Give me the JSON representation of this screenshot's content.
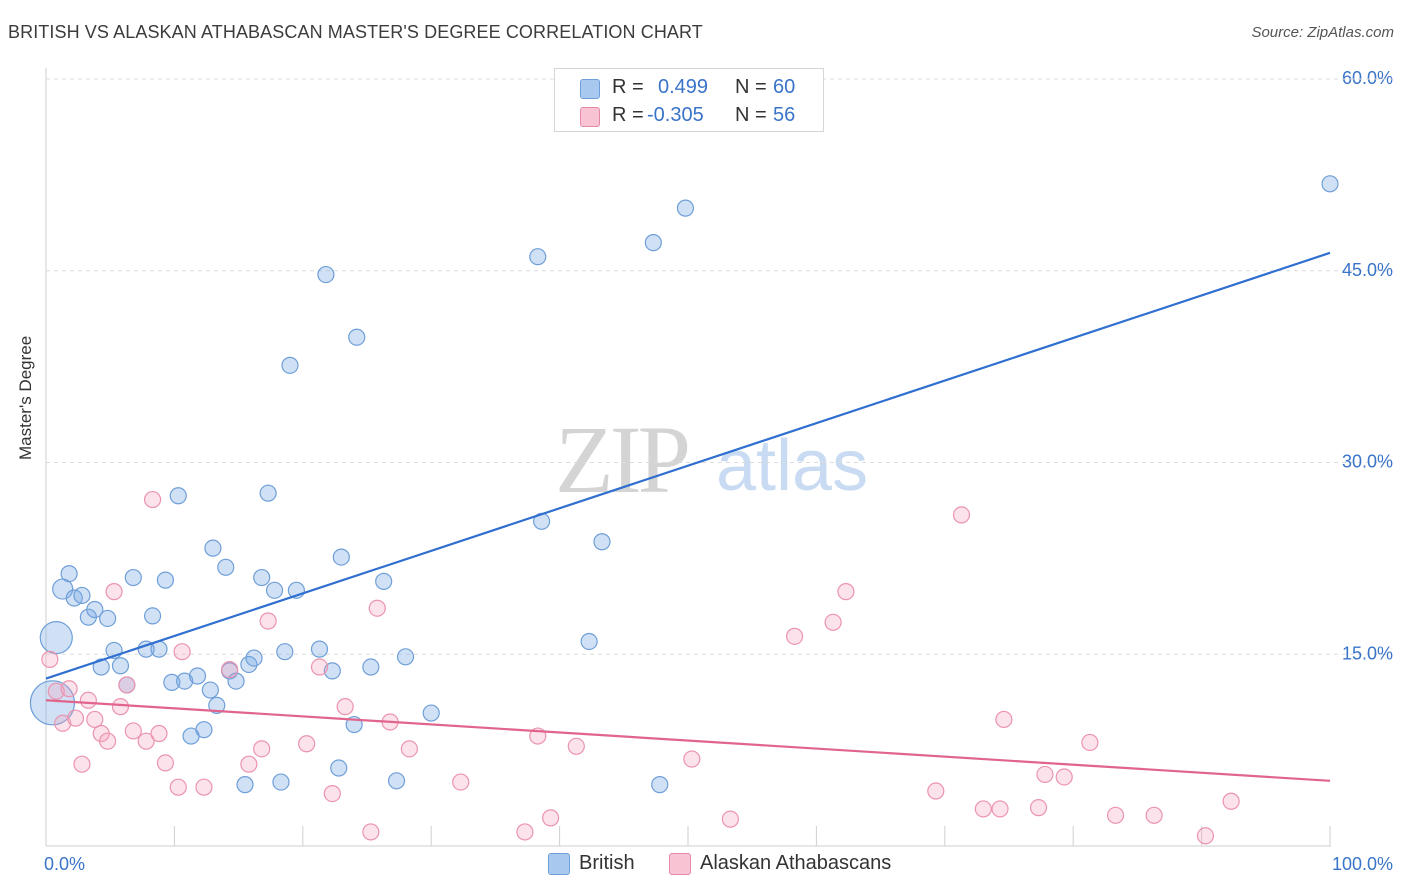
{
  "title": "BRITISH VS ALASKAN ATHABASCAN MASTER'S DEGREE CORRELATION CHART",
  "source": "Source: ZipAtlas.com",
  "watermark": {
    "zip": "ZIP",
    "atlas": "atlas"
  },
  "legend": {
    "rows": [
      {
        "r_label": "R =",
        "r_value": "0.499",
        "n_label": "N =",
        "n_value": "60",
        "color": "#a9c8f0",
        "border": "#6f9fd8"
      },
      {
        "r_label": "R =",
        "r_value": "-0.305",
        "n_label": "N =",
        "n_value": "56",
        "color": "#f8c3d3",
        "border": "#e58aa6"
      }
    ]
  },
  "colors": {
    "british_fill": "rgba(120,170,230,0.35)",
    "british_stroke": "#6f9fd8",
    "british_line": "#2f6fd0",
    "alaskan_fill": "rgba(245,160,185,0.30)",
    "alaskan_stroke": "#eb94ae",
    "alaskan_line": "#e0648c",
    "tick_text": "#3a74c9",
    "grid": "#dcdcdc"
  },
  "chart_data": {
    "type": "scatter",
    "title": "BRITISH VS ALASKAN ATHABASCAN MASTER'S DEGREE CORRELATION CHART",
    "xlabel": "",
    "ylabel": "Master's Degree",
    "xlim": [
      0,
      100
    ],
    "ylim": [
      0,
      60
    ],
    "x_tick_labels": [
      "0.0%",
      "100.0%"
    ],
    "y_ticks": [
      15,
      30,
      45,
      60
    ],
    "y_tick_labels": [
      "15.0%",
      "30.0%",
      "45.0%",
      "60.0%"
    ],
    "grid": true,
    "legend_position": "top-center",
    "series": [
      {
        "name": "British",
        "r": 0.499,
        "n": 60,
        "trend": {
          "x": [
            0,
            100
          ],
          "y": [
            13.1,
            46.4
          ]
        },
        "points": [
          [
            0.5,
            11.2,
            22
          ],
          [
            0.8,
            16.3,
            16
          ],
          [
            1.3,
            20.1,
            10
          ],
          [
            1.8,
            21.3,
            8
          ],
          [
            2.2,
            19.4,
            8
          ],
          [
            2.8,
            19.6,
            8
          ],
          [
            3.3,
            17.9,
            8
          ],
          [
            3.8,
            18.5,
            8
          ],
          [
            4.3,
            14.0,
            8
          ],
          [
            4.8,
            17.8,
            8
          ],
          [
            5.3,
            15.3,
            8
          ],
          [
            5.8,
            14.1,
            8
          ],
          [
            6.3,
            12.6,
            8
          ],
          [
            6.8,
            21.0,
            8
          ],
          [
            7.8,
            15.4,
            8
          ],
          [
            8.3,
            18.0,
            8
          ],
          [
            8.8,
            15.4,
            8
          ],
          [
            9.3,
            20.8,
            8
          ],
          [
            9.8,
            12.8,
            8
          ],
          [
            10.3,
            27.4,
            8
          ],
          [
            10.8,
            12.9,
            8
          ],
          [
            11.3,
            8.6,
            8
          ],
          [
            11.8,
            13.3,
            8
          ],
          [
            12.3,
            9.1,
            8
          ],
          [
            12.8,
            12.2,
            8
          ],
          [
            13.0,
            23.3,
            8
          ],
          [
            13.3,
            11.0,
            8
          ],
          [
            14.0,
            21.8,
            8
          ],
          [
            14.3,
            13.7,
            8
          ],
          [
            14.8,
            12.9,
            8
          ],
          [
            15.5,
            4.8,
            8
          ],
          [
            15.8,
            14.2,
            8
          ],
          [
            16.2,
            14.7,
            8
          ],
          [
            16.8,
            21.0,
            8
          ],
          [
            17.3,
            27.6,
            8
          ],
          [
            17.8,
            20.0,
            8
          ],
          [
            18.3,
            5.0,
            8
          ],
          [
            18.6,
            15.2,
            8
          ],
          [
            19.0,
            37.6,
            8
          ],
          [
            19.5,
            20.0,
            8
          ],
          [
            21.3,
            15.4,
            8
          ],
          [
            21.8,
            44.7,
            8
          ],
          [
            22.3,
            13.7,
            8
          ],
          [
            22.8,
            6.1,
            8
          ],
          [
            23.0,
            22.6,
            8
          ],
          [
            24.0,
            9.5,
            8
          ],
          [
            24.2,
            39.8,
            8
          ],
          [
            25.3,
            14.0,
            8
          ],
          [
            26.3,
            20.7,
            8
          ],
          [
            27.3,
            5.1,
            8
          ],
          [
            28.0,
            14.8,
            8
          ],
          [
            30.0,
            10.4,
            8
          ],
          [
            38.3,
            46.1,
            8
          ],
          [
            38.6,
            25.4,
            8
          ],
          [
            42.3,
            16.0,
            8
          ],
          [
            43.3,
            23.8,
            8
          ],
          [
            47.3,
            47.2,
            8
          ],
          [
            47.8,
            4.8,
            8
          ],
          [
            49.8,
            49.9,
            8
          ],
          [
            100.0,
            51.8,
            8
          ]
        ]
      },
      {
        "name": "Alaskan Athabascans",
        "r": -0.305,
        "n": 56,
        "trend": {
          "x": [
            0,
            100
          ],
          "y": [
            11.4,
            5.1
          ]
        },
        "points": [
          [
            0.3,
            14.6,
            8
          ],
          [
            0.8,
            12.1,
            8
          ],
          [
            1.3,
            9.6,
            8
          ],
          [
            1.8,
            12.3,
            8
          ],
          [
            2.3,
            10.0,
            8
          ],
          [
            2.8,
            6.4,
            8
          ],
          [
            3.3,
            11.4,
            8
          ],
          [
            3.8,
            9.9,
            8
          ],
          [
            4.3,
            8.8,
            8
          ],
          [
            4.8,
            8.2,
            8
          ],
          [
            5.3,
            19.9,
            8
          ],
          [
            5.8,
            10.9,
            8
          ],
          [
            6.3,
            12.6,
            8
          ],
          [
            6.8,
            9.0,
            8
          ],
          [
            7.8,
            8.2,
            8
          ],
          [
            8.3,
            27.1,
            8
          ],
          [
            8.8,
            8.8,
            8
          ],
          [
            9.3,
            6.5,
            8
          ],
          [
            10.3,
            4.6,
            8
          ],
          [
            10.6,
            15.2,
            8
          ],
          [
            12.3,
            4.6,
            8
          ],
          [
            14.3,
            13.8,
            8
          ],
          [
            15.8,
            6.4,
            8
          ],
          [
            16.8,
            7.6,
            8
          ],
          [
            17.3,
            17.6,
            8
          ],
          [
            20.3,
            8.0,
            8
          ],
          [
            21.3,
            14.0,
            8
          ],
          [
            22.3,
            4.1,
            8
          ],
          [
            23.3,
            10.9,
            8
          ],
          [
            25.3,
            1.1,
            8
          ],
          [
            25.8,
            18.6,
            8
          ],
          [
            26.8,
            9.7,
            8
          ],
          [
            28.3,
            7.6,
            8
          ],
          [
            32.3,
            5.0,
            8
          ],
          [
            37.3,
            1.1,
            8
          ],
          [
            38.3,
            8.6,
            8
          ],
          [
            39.3,
            2.2,
            8
          ],
          [
            41.3,
            7.8,
            8
          ],
          [
            50.3,
            6.8,
            8
          ],
          [
            53.3,
            2.1,
            8
          ],
          [
            58.3,
            16.4,
            8
          ],
          [
            61.3,
            17.5,
            8
          ],
          [
            62.3,
            19.9,
            8
          ],
          [
            69.3,
            4.3,
            8
          ],
          [
            71.3,
            25.9,
            8
          ],
          [
            73.0,
            2.9,
            8
          ],
          [
            74.3,
            2.9,
            8
          ],
          [
            74.6,
            9.9,
            8
          ],
          [
            77.3,
            3.0,
            8
          ],
          [
            77.8,
            5.6,
            8
          ],
          [
            79.3,
            5.4,
            8
          ],
          [
            81.3,
            8.1,
            8
          ],
          [
            83.3,
            2.4,
            8
          ],
          [
            86.3,
            2.4,
            8
          ],
          [
            90.3,
            0.8,
            8
          ],
          [
            92.3,
            3.5,
            8
          ]
        ]
      }
    ]
  },
  "bottom_legend": [
    {
      "label": "British"
    },
    {
      "label": "Alaskan Athabascans"
    }
  ]
}
